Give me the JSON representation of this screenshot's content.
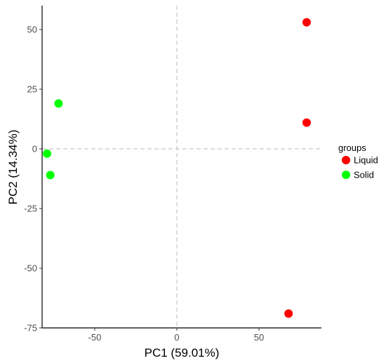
{
  "chart_data": {
    "type": "scatter",
    "xlabel": "PC1 (59.01%)",
    "ylabel": "PC2 (14.34%)",
    "xlim": [
      -82,
      88
    ],
    "ylim": [
      -75,
      60
    ],
    "xticks": [
      -50,
      0,
      50
    ],
    "yticks": [
      50,
      25,
      0,
      -25,
      -50,
      -75
    ],
    "grid": false,
    "reference_lines": {
      "x": 0,
      "y": 0,
      "style": "dashed"
    },
    "legend": {
      "title": "groups",
      "placement": "right",
      "entries": [
        {
          "label": "Liquid",
          "color": "#ff0000"
        },
        {
          "label": "Solid",
          "color": "#00ff00"
        }
      ]
    },
    "series": [
      {
        "group": "Liquid",
        "color": "#ff0000",
        "points": [
          {
            "x": 79,
            "y": 53
          },
          {
            "x": 79,
            "y": 11
          },
          {
            "x": 68,
            "y": -69
          }
        ]
      },
      {
        "group": "Solid",
        "color": "#00ff00",
        "points": [
          {
            "x": -72,
            "y": 19
          },
          {
            "x": -79,
            "y": -2
          },
          {
            "x": -77,
            "y": -11
          }
        ]
      }
    ]
  }
}
